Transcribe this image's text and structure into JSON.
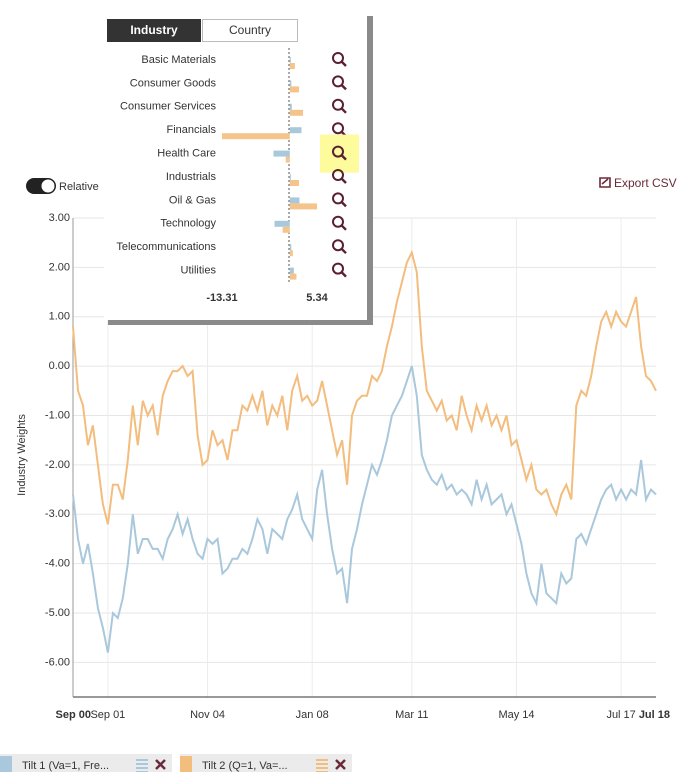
{
  "toolbar": {
    "toggle_label": "Relative",
    "export_label": "Export CSV"
  },
  "popup": {
    "tabs": [
      "Industry",
      "Country"
    ]
  },
  "chart_data": [
    {
      "type": "line",
      "y_label": "Industry Weights",
      "categories": [
        "Sep 00",
        null,
        null,
        null,
        null,
        null,
        null,
        "Sep 01",
        null,
        null,
        null,
        null,
        null,
        null,
        null,
        null,
        null,
        null,
        null,
        null,
        null,
        null,
        null,
        null,
        null,
        null,
        null,
        "Nov 04",
        null,
        null,
        null,
        null,
        null,
        null,
        null,
        null,
        null,
        null,
        null,
        null,
        null,
        null,
        null,
        null,
        null,
        null,
        null,
        null,
        "Jan 08",
        null,
        null,
        null,
        null,
        null,
        null,
        null,
        null,
        null,
        null,
        null,
        null,
        null,
        null,
        null,
        null,
        null,
        null,
        null,
        "Mar 11",
        null,
        null,
        null,
        null,
        null,
        null,
        null,
        null,
        null,
        null,
        null,
        null,
        null,
        null,
        null,
        null,
        null,
        null,
        null,
        null,
        "May 14",
        null,
        null,
        null,
        null,
        null,
        null,
        null,
        null,
        null,
        null,
        null,
        null,
        null,
        null,
        null,
        null,
        null,
        null,
        null,
        null,
        "Jul 17",
        null,
        null,
        null,
        null,
        null,
        null,
        "Jul 18"
      ],
      "series": [
        {
          "name": "Tilt 1 (Va=1, Fre...",
          "color": "#a9c8dc",
          "values": [
            -2.6,
            -3.5,
            -4.0,
            -3.6,
            -4.2,
            -4.9,
            -5.3,
            -5.8,
            -5.0,
            -5.1,
            -4.7,
            -4.0,
            -3.0,
            -3.8,
            -3.5,
            -3.5,
            -3.7,
            -3.7,
            -3.9,
            -3.5,
            -3.3,
            -3.0,
            -3.4,
            -3.1,
            -3.5,
            -3.8,
            -3.9,
            -3.5,
            -3.6,
            -3.5,
            -4.2,
            -4.1,
            -3.9,
            -3.9,
            -3.7,
            -3.8,
            -3.5,
            -3.1,
            -3.3,
            -3.8,
            -3.3,
            -3.4,
            -3.5,
            -3.1,
            -2.9,
            -2.6,
            -3.1,
            -3.3,
            -3.5,
            -2.5,
            -2.1,
            -3.0,
            -3.7,
            -4.2,
            -4.1,
            -4.8,
            -3.7,
            -3.3,
            -2.8,
            -2.4,
            -2.0,
            -2.2,
            -1.9,
            -1.5,
            -1.0,
            -0.8,
            -0.6,
            -0.3,
            0.0,
            -0.6,
            -1.8,
            -2.1,
            -2.3,
            -2.4,
            -2.2,
            -2.5,
            -2.4,
            -2.6,
            -2.5,
            -2.6,
            -2.8,
            -2.3,
            -2.7,
            -2.4,
            -2.8,
            -2.7,
            -2.6,
            -3.0,
            -2.8,
            -3.2,
            -3.6,
            -4.2,
            -4.6,
            -4.8,
            -4.0,
            -4.6,
            -4.7,
            -4.8,
            -4.2,
            -4.4,
            -4.3,
            -3.5,
            -3.4,
            -3.6,
            -3.3,
            -3.0,
            -2.7,
            -2.5,
            -2.4,
            -2.7,
            -2.5,
            -2.7,
            -2.5,
            -2.6,
            -1.9,
            -2.7,
            -2.5,
            -2.6
          ]
        },
        {
          "name": "Tilt 2 (Q=1, Va=...",
          "color": "#f3bd7e",
          "values": [
            0.8,
            -0.5,
            -0.8,
            -1.6,
            -1.2,
            -2.0,
            -2.8,
            -3.2,
            -2.4,
            -2.4,
            -2.7,
            -1.9,
            -0.8,
            -1.6,
            -0.7,
            -1.0,
            -0.8,
            -1.4,
            -0.6,
            -0.3,
            -0.1,
            -0.1,
            0.0,
            -0.2,
            -0.1,
            -1.4,
            -2.0,
            -1.9,
            -1.3,
            -1.6,
            -1.5,
            -1.9,
            -1.3,
            -1.3,
            -0.8,
            -0.9,
            -0.6,
            -0.9,
            -0.5,
            -1.2,
            -0.8,
            -1.0,
            -0.6,
            -1.3,
            -0.5,
            -0.2,
            -0.7,
            -0.6,
            -0.8,
            -0.7,
            -0.3,
            -0.8,
            -1.3,
            -1.8,
            -1.5,
            -2.4,
            -1.0,
            -0.7,
            -0.6,
            -0.6,
            -0.2,
            -0.3,
            -0.1,
            0.4,
            0.8,
            1.3,
            1.7,
            2.1,
            2.3,
            1.9,
            0.4,
            -0.5,
            -0.7,
            -0.9,
            -0.7,
            -1.1,
            -1.0,
            -1.3,
            -0.6,
            -1.0,
            -1.3,
            -0.8,
            -1.1,
            -0.8,
            -1.2,
            -1.0,
            -1.3,
            -1.0,
            -1.6,
            -1.5,
            -1.9,
            -2.3,
            -2.0,
            -2.5,
            -2.6,
            -2.5,
            -2.8,
            -3.0,
            -2.6,
            -2.4,
            -2.7,
            -0.8,
            -0.5,
            -0.6,
            -0.2,
            0.4,
            0.9,
            1.1,
            0.8,
            1.1,
            0.9,
            0.8,
            1.1,
            1.4,
            0.4,
            -0.2,
            -0.3,
            -0.5
          ]
        }
      ],
      "ylim": [
        -6.7,
        3.0
      ],
      "yticks": [
        {
          "value": 3,
          "label": "3.00"
        },
        {
          "value": 2,
          "label": "2.00"
        },
        {
          "value": 1,
          "label": "1.00"
        },
        {
          "value": 0,
          "label": "0.00"
        },
        {
          "value": -1,
          "label": "-1.00"
        },
        {
          "value": -2,
          "label": "-2.00"
        },
        {
          "value": -3,
          "label": "-3.00"
        },
        {
          "value": -4,
          "label": "-4.00"
        },
        {
          "value": -5,
          "label": "-5.00"
        },
        {
          "value": -6,
          "label": "-6.00"
        }
      ],
      "grid": true
    },
    {
      "type": "bar",
      "orientation": "horizontal",
      "categories": [
        "Basic Materials",
        "Consumer Goods",
        "Consumer Services",
        "Financials",
        "Health Care",
        "Industrials",
        "Oil & Gas",
        "Technology",
        "Telecommunications",
        "Utilities"
      ],
      "series": [
        {
          "color": "#a9c8dc",
          "values": [
            0.2,
            0.3,
            0.4,
            2.3,
            -3.2,
            0.2,
            1.9,
            -3.0,
            0.3,
            0.8
          ]
        },
        {
          "color": "#f5c48a",
          "values": [
            1.0,
            1.8,
            2.6,
            -13.31,
            -0.8,
            1.8,
            5.34,
            -1.4,
            0.6,
            1.3
          ]
        }
      ],
      "xlim": [
        -13.31,
        5.34
      ],
      "xticks": [
        -13.31,
        5.34
      ]
    }
  ]
}
